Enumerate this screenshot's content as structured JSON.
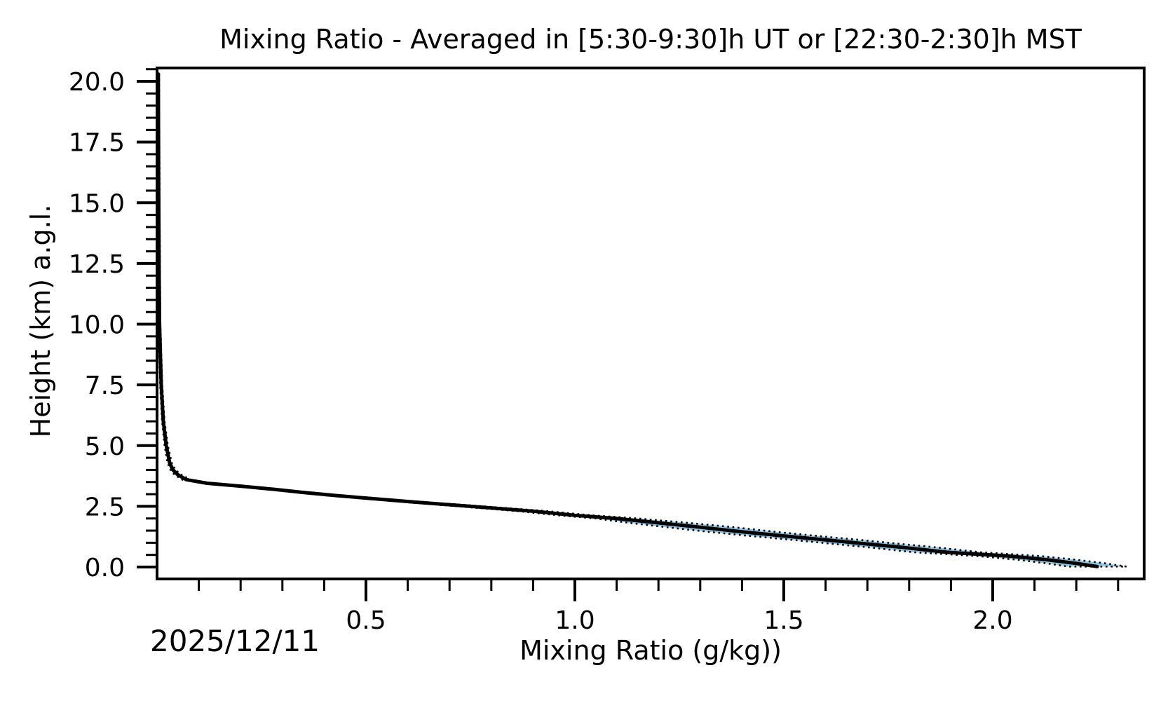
{
  "figure": {
    "title": "Mixing Ratio - Averaged in [5:30-9:30]h UT or [22:30-2:30]h MST",
    "date_annotation": "2025/12/11",
    "background_color": "#ffffff"
  },
  "style": {
    "mean_line_color": "#000000",
    "band_fill_color": "#8FCBE8",
    "band_edge_color": "#000000",
    "band_edge_style": "dotted",
    "spine_color": "#000000",
    "text_color": "#000000"
  },
  "axes": {
    "x": {
      "label": "Mixing Ratio (g/kg))",
      "min": 0.0,
      "max": 2.3624,
      "major_tick_values": [
        0.5,
        1.0,
        1.5,
        2.0
      ],
      "major_tick_labels": [
        "0.5",
        "1.0",
        "1.5",
        "2.0"
      ],
      "minor_tick_step": 0.1
    },
    "y": {
      "label": "Height (km) a.g.l.",
      "min": -0.49,
      "max": 20.55,
      "major_tick_values": [
        0.0,
        2.5,
        5.0,
        7.5,
        10.0,
        12.5,
        15.0,
        17.5,
        20.0
      ],
      "major_tick_labels": [
        "0.0",
        "2.5",
        "5.0",
        "7.5",
        "10.0",
        "12.5",
        "15.0",
        "17.5",
        "20.0"
      ],
      "minor_tick_step": 0.5
    }
  },
  "chart_data": {
    "type": "line",
    "title": "Mixing Ratio - Averaged in [5:30-9:30]h UT or [22:30-2:30]h MST",
    "xlabel": "Mixing Ratio (g/kg))",
    "ylabel": "Height (km) a.g.l.",
    "xlim": [
      0.0,
      2.3624
    ],
    "ylim": [
      -0.49,
      20.55
    ],
    "grid": false,
    "legend": false,
    "annotations": [
      "2025/12/11"
    ],
    "series": [
      {
        "name": "mean-mixing-ratio-profile",
        "orientation": "vertical-profile",
        "heights_km": [
          0.02,
          0.15,
          0.3,
          0.45,
          0.61,
          0.8,
          0.95,
          1.12,
          1.28,
          1.45,
          1.64,
          1.82,
          2.0,
          2.13,
          2.3,
          2.5,
          2.67,
          2.84,
          2.94,
          3.07,
          3.2,
          3.33,
          3.45,
          3.6,
          3.8,
          4.0,
          4.3,
          5.0,
          6.0,
          7.5,
          10.0,
          12.0,
          15.0,
          20.3
        ],
        "mixing_ratio_g_per_kg": [
          2.25,
          2.2,
          2.13,
          2.04,
          1.89,
          1.79,
          1.7,
          1.6,
          1.5,
          1.4,
          1.3,
          1.2,
          1.1,
          1.0,
          0.9,
          0.75,
          0.62,
          0.5,
          0.43,
          0.35,
          0.28,
          0.2,
          0.12,
          0.07,
          0.05,
          0.038,
          0.03,
          0.022,
          0.015,
          0.01,
          0.006,
          0.005,
          0.004,
          0.003
        ],
        "std_g_per_kg": [
          0.07,
          0.07,
          0.07,
          0.075,
          0.08,
          0.08,
          0.08,
          0.08,
          0.08,
          0.08,
          0.08,
          0.07,
          0.05,
          0.04,
          0.035,
          0.03,
          0.025,
          0.02,
          0.02,
          0.018,
          0.015,
          0.013,
          0.012,
          0.01,
          0.008,
          0.006,
          0.005,
          0.004,
          0.003,
          0.0025,
          0.002,
          0.002,
          0.002,
          0.002
        ]
      }
    ]
  }
}
